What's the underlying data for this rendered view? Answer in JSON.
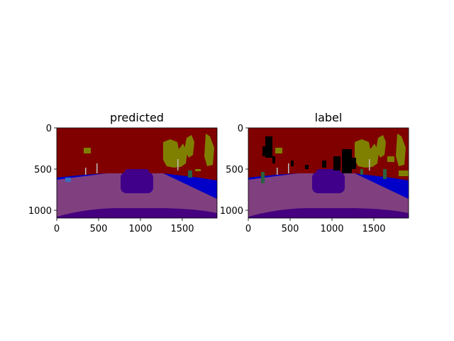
{
  "figure": {
    "panels": [
      {
        "title": "predicted",
        "xticks": [
          "0",
          "500",
          "1000",
          "1500"
        ],
        "yticks": [
          "0",
          "500",
          "1000"
        ]
      },
      {
        "title": "label",
        "xticks": [
          "0",
          "500",
          "1000",
          "1500"
        ],
        "yticks": [
          "0",
          "500",
          "1000"
        ]
      }
    ],
    "image_extent": {
      "width": 1914,
      "height": 1052
    },
    "colors": {
      "sky_building": "#800000",
      "road": "#804080",
      "sidewalk": "#0000c8",
      "vegetation": "#808000",
      "vehicle": "#40008a",
      "ego_vehicle": "#44007e",
      "object": "#000000",
      "person": "#2a6040",
      "pole": "#c0c0c0"
    }
  }
}
